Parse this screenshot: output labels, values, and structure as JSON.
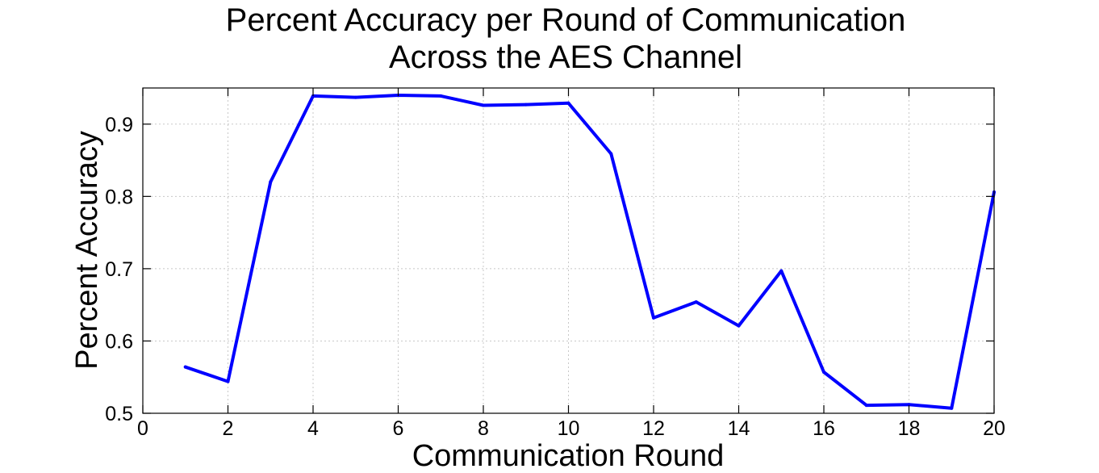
{
  "chart_data": {
    "type": "line",
    "title_lines": [
      "Percent Accuracy per Round of Communication",
      "Across the AES Channel"
    ],
    "xlabel": "Communication Round",
    "ylabel": "Percent Accuracy",
    "xlim": [
      0,
      20
    ],
    "ylim": [
      0.5,
      0.95
    ],
    "xticks": [
      "0",
      "2",
      "4",
      "6",
      "8",
      "10",
      "12",
      "14",
      "16",
      "18",
      "20"
    ],
    "yticks": [
      "0.5",
      "0.6",
      "0.7",
      "0.8",
      "0.9"
    ],
    "grid": true,
    "series": [
      {
        "color": "#0000ff",
        "x": [
          1,
          2,
          3,
          4,
          5,
          6,
          7,
          8,
          9,
          10,
          11,
          12,
          13,
          14,
          15,
          16,
          17,
          18,
          19,
          20
        ],
        "y": [
          0.564,
          0.544,
          0.82,
          0.939,
          0.937,
          0.94,
          0.939,
          0.926,
          0.927,
          0.929,
          0.859,
          0.632,
          0.654,
          0.621,
          0.697,
          0.557,
          0.511,
          0.512,
          0.507,
          0.806
        ]
      }
    ]
  }
}
